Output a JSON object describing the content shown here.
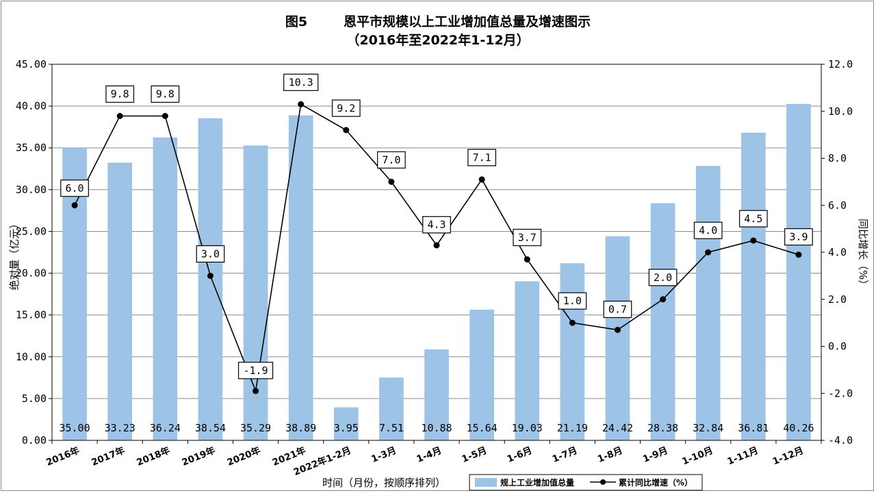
{
  "chart_data": {
    "type": "bar+line",
    "title": "图5        恩平市规模以上工业增加值总量及增速图示",
    "subtitle": "（2016年至2022年1-12月）",
    "categories": [
      "2016年",
      "2017年",
      "2018年",
      "2019年",
      "2020年",
      "2021年",
      "2022年1-2月",
      "1-3月",
      "1-4月",
      "1-5月",
      "1-6月",
      "1-7月",
      "1-8月",
      "1-9月",
      "1-10月",
      "1-11月",
      "1-12月"
    ],
    "xlabel": "时间（月份，按顺序排列）",
    "ylabel": "绝对量（亿元）",
    "y2label": "同比增长（%）",
    "ylim": [
      0,
      45
    ],
    "y2lim": [
      -4,
      12
    ],
    "yticks": [
      "0.00",
      "5.00",
      "10.00",
      "15.00",
      "20.00",
      "25.00",
      "30.00",
      "35.00",
      "40.00",
      "45.00"
    ],
    "y2ticks": [
      "-4.0",
      "-2.0",
      "0.0",
      "2.0",
      "4.0",
      "6.0",
      "8.0",
      "10.0",
      "12.0"
    ],
    "grid": true,
    "legend_position": "bottom-right",
    "series": [
      {
        "name": "规上工业增加值总量",
        "type": "bar",
        "axis": "left",
        "color": "#9dc3e6",
        "values": [
          35.0,
          33.23,
          36.24,
          38.54,
          35.29,
          38.89,
          3.95,
          7.51,
          10.88,
          15.64,
          19.03,
          21.19,
          24.42,
          28.38,
          32.84,
          36.81,
          40.26
        ],
        "labels": [
          "35.00",
          "33.23",
          "36.24",
          "38.54",
          "35.29",
          "38.89",
          "3.95",
          "7.51",
          "10.88",
          "15.64",
          "19.03",
          "21.19",
          "24.42",
          "28.38",
          "32.84",
          "36.81",
          "40.26"
        ]
      },
      {
        "name": "累计同比增速（%）",
        "type": "line",
        "axis": "right",
        "color": "#000000",
        "values": [
          6.0,
          9.8,
          9.8,
          3.0,
          -1.9,
          10.3,
          9.2,
          7.0,
          4.3,
          7.1,
          3.7,
          1.0,
          0.7,
          2.0,
          4.0,
          4.5,
          3.9
        ],
        "labels": [
          "6.0",
          "9.8",
          "9.8",
          "3.0",
          "-1.9",
          "10.3",
          "9.2",
          "7.0",
          "4.3",
          "7.1",
          "3.7",
          "1.0",
          "0.7",
          "2.0",
          "4.0",
          "4.5",
          "3.9"
        ]
      }
    ]
  }
}
